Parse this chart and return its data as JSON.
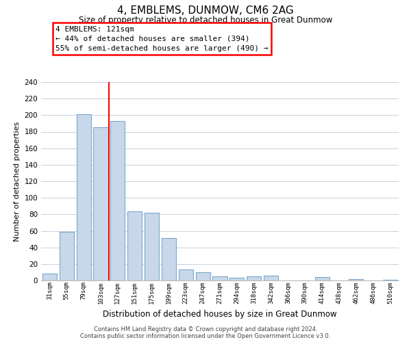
{
  "title": "4, EMBLEMS, DUNMOW, CM6 2AG",
  "subtitle": "Size of property relative to detached houses in Great Dunmow",
  "xlabel": "Distribution of detached houses by size in Great Dunmow",
  "ylabel": "Number of detached properties",
  "categories": [
    "31sqm",
    "55sqm",
    "79sqm",
    "103sqm",
    "127sqm",
    "151sqm",
    "175sqm",
    "199sqm",
    "223sqm",
    "247sqm",
    "271sqm",
    "294sqm",
    "318sqm",
    "342sqm",
    "366sqm",
    "390sqm",
    "414sqm",
    "438sqm",
    "462sqm",
    "486sqm",
    "510sqm"
  ],
  "values": [
    8,
    59,
    201,
    185,
    193,
    84,
    82,
    51,
    13,
    10,
    5,
    3,
    5,
    6,
    0,
    0,
    4,
    0,
    2,
    0,
    1
  ],
  "bar_color": "#c8d8ea",
  "bar_edge_color": "#7aa8cc",
  "redline_x": 3.5,
  "annotation_title": "4 EMBLEMS: 121sqm",
  "annotation_line1": "← 44% of detached houses are smaller (394)",
  "annotation_line2": "55% of semi-detached houses are larger (490) →",
  "ylim": [
    0,
    240
  ],
  "yticks": [
    0,
    20,
    40,
    60,
    80,
    100,
    120,
    140,
    160,
    180,
    200,
    220,
    240
  ],
  "footer_line1": "Contains HM Land Registry data © Crown copyright and database right 2024.",
  "footer_line2": "Contains public sector information licensed under the Open Government Licence v3.0.",
  "background_color": "#ffffff",
  "grid_color": "#c8d0dc"
}
